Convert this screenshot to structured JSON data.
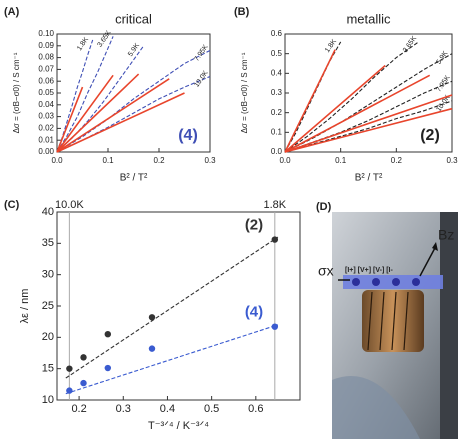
{
  "chart_data": [
    {
      "type": "line",
      "panel": "(A)",
      "title": "critical",
      "xlabel": "B² / T²",
      "ylabel": "Δσ = (σB−σ0) / S cm⁻¹",
      "annotation": "(4)",
      "xlim": [
        0,
        0.3
      ],
      "xticks": [
        {
          "value": 0,
          "label": "0.0"
        },
        0.1,
        0.2,
        0.3
      ],
      "ylim": [
        0,
        0.1
      ],
      "yticks": [
        {
          "value": 0,
          "label": "0.00"
        },
        0.01,
        0.02,
        0.03,
        0.04,
        0.05,
        0.06,
        0.07,
        0.08,
        0.09,
        {
          "value": 0.1,
          "label": "0.10"
        }
      ],
      "series": [
        {
          "name": "1.8K",
          "color": "#3f4fb5",
          "dash": true,
          "x": [
            0,
            0.01,
            0.02,
            0.03,
            0.04,
            0.05,
            0.06,
            0.07
          ],
          "values": [
            0,
            0.012,
            0.026,
            0.04,
            0.055,
            0.068,
            0.082,
            0.095
          ]
        },
        {
          "name": "3.65K",
          "color": "#3f4fb5",
          "dash": true,
          "x": [
            0,
            0.02,
            0.04,
            0.06,
            0.08,
            0.1,
            0.11
          ],
          "values": [
            0,
            0.014,
            0.03,
            0.05,
            0.068,
            0.088,
            0.098
          ]
        },
        {
          "name": "5.9K",
          "color": "#3f4fb5",
          "dash": true,
          "x": [
            0,
            0.03,
            0.06,
            0.09,
            0.12,
            0.15,
            0.17
          ],
          "values": [
            0,
            0.012,
            0.026,
            0.042,
            0.06,
            0.078,
            0.09
          ]
        },
        {
          "name": "7.95K",
          "color": "#3f4fb5",
          "dash": true,
          "x": [
            0,
            0.05,
            0.1,
            0.15,
            0.2,
            0.25,
            0.3
          ],
          "values": [
            0,
            0.013,
            0.028,
            0.045,
            0.06,
            0.075,
            0.086
          ]
        },
        {
          "name": "10.0K",
          "color": "#3f4fb5",
          "dash": true,
          "x": [
            0,
            0.05,
            0.1,
            0.15,
            0.2,
            0.25,
            0.3
          ],
          "values": [
            0,
            0.01,
            0.021,
            0.033,
            0.045,
            0.055,
            0.064
          ]
        },
        {
          "color": "#e8452c",
          "dash": false,
          "x": [
            0,
            0.05
          ],
          "values": [
            0,
            0.055
          ]
        },
        {
          "color": "#e8452c",
          "dash": false,
          "x": [
            0,
            0.11
          ],
          "values": [
            0,
            0.065
          ]
        },
        {
          "color": "#e8452c",
          "dash": false,
          "x": [
            0,
            0.16
          ],
          "values": [
            0,
            0.066
          ]
        },
        {
          "color": "#e8452c",
          "dash": false,
          "x": [
            0,
            0.22
          ],
          "values": [
            0,
            0.062
          ]
        },
        {
          "color": "#e8452c",
          "dash": false,
          "x": [
            0,
            0.25
          ],
          "values": [
            0,
            0.05
          ]
        }
      ]
    },
    {
      "type": "line",
      "panel": "(B)",
      "title": "metallic",
      "xlabel": "B² / T²",
      "ylabel": "Δσ = (σB−σ0) / S cm⁻¹",
      "annotation": "(2)",
      "xlim": [
        0,
        0.3
      ],
      "xticks": [
        {
          "value": 0,
          "label": "0.0"
        },
        0.1,
        0.2,
        0.3
      ],
      "ylim": [
        0,
        0.6
      ],
      "yticks": [
        {
          "value": 0,
          "label": "0.0"
        },
        0.1,
        0.2,
        0.3,
        0.4,
        0.5,
        0.6
      ],
      "series": [
        {
          "name": "1.8K",
          "color": "#222222",
          "dash": true,
          "x": [
            0,
            0.02,
            0.04,
            0.06,
            0.08,
            0.1
          ],
          "values": [
            0,
            0.1,
            0.22,
            0.34,
            0.46,
            0.56
          ]
        },
        {
          "name": "3.65K",
          "color": "#222222",
          "dash": true,
          "x": [
            0,
            0.04,
            0.08,
            0.12,
            0.16,
            0.2,
            0.24
          ],
          "values": [
            0,
            0.08,
            0.17,
            0.27,
            0.38,
            0.48,
            0.56
          ]
        },
        {
          "name": "5.9K",
          "color": "#222222",
          "dash": true,
          "x": [
            0,
            0.05,
            0.1,
            0.15,
            0.2,
            0.25,
            0.3
          ],
          "values": [
            0,
            0.07,
            0.15,
            0.24,
            0.33,
            0.42,
            0.5
          ]
        },
        {
          "name": "7.95K",
          "color": "#222222",
          "dash": true,
          "x": [
            0,
            0.05,
            0.1,
            0.15,
            0.2,
            0.25,
            0.3
          ],
          "values": [
            0,
            0.05,
            0.1,
            0.16,
            0.23,
            0.3,
            0.36
          ]
        },
        {
          "name": "10.0K",
          "color": "#222222",
          "dash": true,
          "x": [
            0,
            0.05,
            0.1,
            0.15,
            0.2,
            0.25,
            0.3
          ],
          "values": [
            0,
            0.04,
            0.08,
            0.12,
            0.17,
            0.21,
            0.26
          ]
        },
        {
          "color": "#e8452c",
          "dash": false,
          "x": [
            0,
            0.09
          ],
          "values": [
            0,
            0.52
          ]
        },
        {
          "color": "#e8452c",
          "dash": false,
          "x": [
            0,
            0.18
          ],
          "values": [
            0,
            0.44
          ]
        },
        {
          "color": "#e8452c",
          "dash": false,
          "x": [
            0,
            0.26
          ],
          "values": [
            0,
            0.39
          ]
        },
        {
          "color": "#e8452c",
          "dash": false,
          "x": [
            0,
            0.3
          ],
          "values": [
            0,
            0.29
          ]
        },
        {
          "color": "#e8452c",
          "dash": false,
          "x": [
            0,
            0.3
          ],
          "values": [
            0,
            0.22
          ]
        }
      ]
    },
    {
      "type": "scatter",
      "panel": "(C)",
      "xlabel": "T⁻³ᐟ⁴ / K⁻³ᐟ⁴",
      "ylabel": "λε / nm",
      "xlim": [
        0.15,
        0.7
      ],
      "xticks": [
        0.2,
        0.3,
        0.4,
        0.5,
        0.6
      ],
      "ylim": [
        10,
        40
      ],
      "yticks": [
        10,
        15,
        20,
        25,
        30,
        35,
        40
      ],
      "top_ticks": [
        {
          "value": 0.178,
          "label": "10.0K"
        },
        {
          "value": 0.643,
          "label": "1.8K"
        }
      ],
      "series": [
        {
          "name": "(2)",
          "color": "#333333",
          "markers": true,
          "x": [
            0.178,
            0.21,
            0.265,
            0.365,
            0.643
          ],
          "values": [
            15,
            16.8,
            20.5,
            23.2,
            35.6
          ]
        },
        {
          "name": "(4)",
          "color": "#3a5bd0",
          "markers": true,
          "x": [
            0.178,
            0.21,
            0.265,
            0.365,
            0.643
          ],
          "values": [
            11.5,
            12.7,
            15.1,
            18.2,
            21.7
          ]
        },
        {
          "color": "#333333",
          "dash": true,
          "x": [
            0.17,
            0.65
          ],
          "values": [
            13.5,
            36
          ]
        },
        {
          "color": "#3a5bd0",
          "dash": true,
          "x": [
            0.17,
            0.65
          ],
          "values": [
            11,
            22
          ]
        }
      ]
    }
  ],
  "photo_panel": {
    "panel": "(D)",
    "contacts": "[I+] [V+] [V-] [I-",
    "field": "Bz",
    "current": "σx"
  }
}
